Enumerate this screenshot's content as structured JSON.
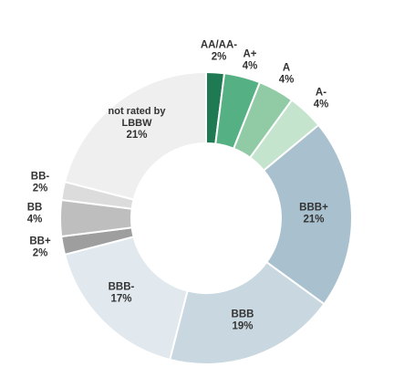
{
  "chart_data": {
    "type": "pie",
    "variant": "donut",
    "title": "",
    "legend": "none",
    "start_angle_deg": 0,
    "direction": "clockwise",
    "slices": [
      {
        "label": "AA/AA-",
        "value": 2,
        "value_label": "2%",
        "color": "#1f7a53"
      },
      {
        "label": "A+",
        "value": 4,
        "value_label": "4%",
        "color": "#55b083"
      },
      {
        "label": "A",
        "value": 4,
        "value_label": "4%",
        "color": "#91cba6"
      },
      {
        "label": "A-",
        "value": 4,
        "value_label": "4%",
        "color": "#c5e4cd"
      },
      {
        "label": "BBB+",
        "value": 21,
        "value_label": "21%",
        "color": "#a9c1ce"
      },
      {
        "label": "BBB",
        "value": 19,
        "value_label": "19%",
        "color": "#c9d8e0"
      },
      {
        "label": "BBB-",
        "value": 17,
        "value_label": "17%",
        "color": "#e1e9ee"
      },
      {
        "label": "BB+",
        "value": 2,
        "value_label": "2%",
        "color": "#9e9e9e"
      },
      {
        "label": "BB",
        "value": 4,
        "value_label": "4%",
        "color": "#bebebe"
      },
      {
        "label": "BB-",
        "value": 2,
        "value_label": "2%",
        "color": "#dcdcdc"
      },
      {
        "label": "not rated by LBBW",
        "value": 21,
        "value_label": "21%",
        "color": "#efefef"
      }
    ]
  }
}
